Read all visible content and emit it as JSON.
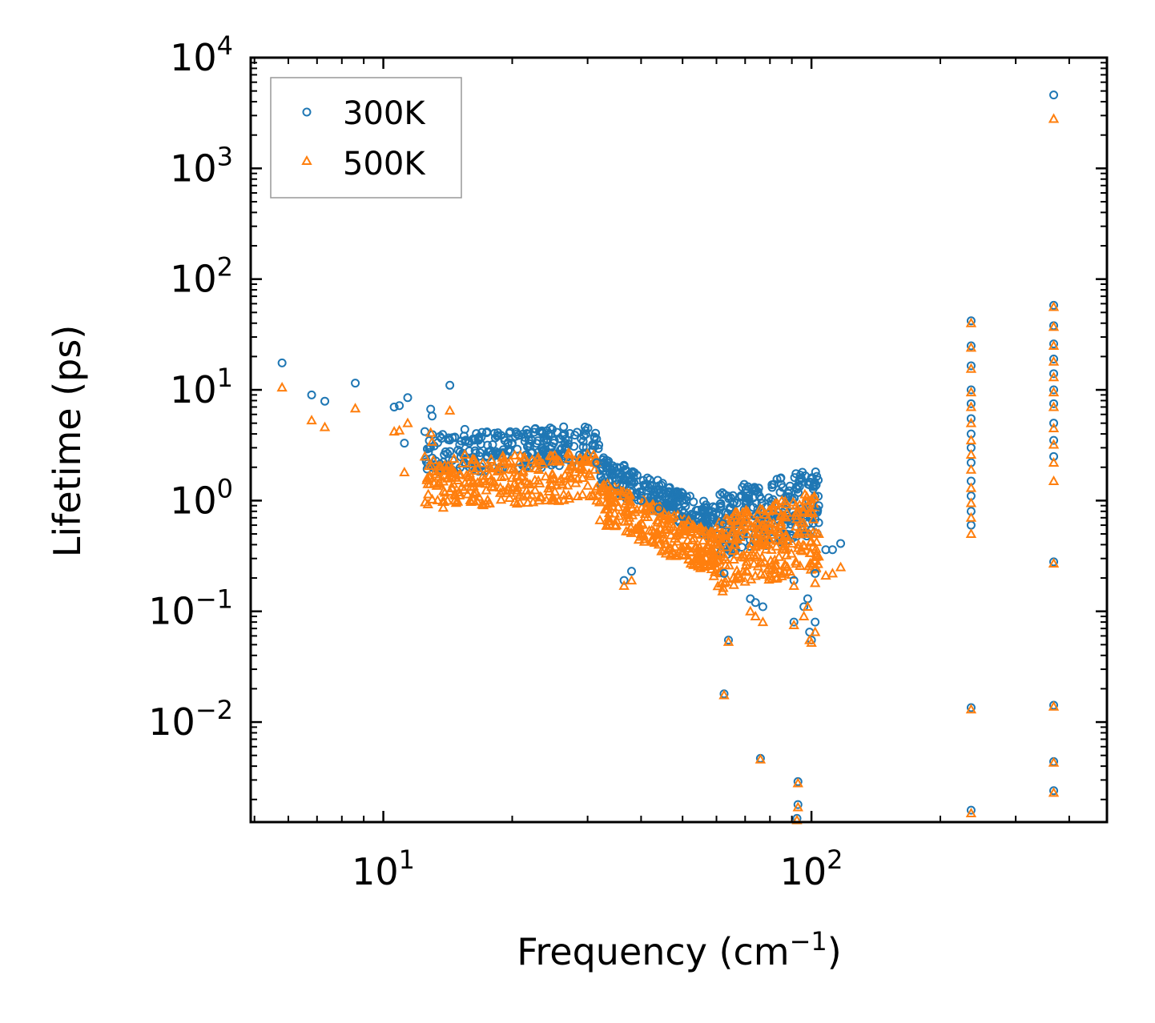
{
  "chart_data": {
    "type": "scatter",
    "title": "",
    "xlabel": "Frequency (cm",
    "xlabel_sup": "−1",
    "xlabel_suffix": ")",
    "ylabel": "Lifetime (ps)",
    "xscale": "log",
    "yscale": "log",
    "xlim": [
      4.9,
      490
    ],
    "ylim": [
      0.00125,
      10000
    ],
    "x_ticks": [
      {
        "value": 10,
        "base": "10",
        "exp": "1"
      },
      {
        "value": 100,
        "base": "10",
        "exp": "2"
      }
    ],
    "y_ticks": [
      {
        "value": 0.01,
        "base": "10",
        "exp": "−2"
      },
      {
        "value": 0.1,
        "base": "10",
        "exp": "−1"
      },
      {
        "value": 1,
        "base": "10",
        "exp": "0"
      },
      {
        "value": 10,
        "base": "10",
        "exp": "1"
      },
      {
        "value": 100,
        "base": "10",
        "exp": "2"
      },
      {
        "value": 1000,
        "base": "10",
        "exp": "3"
      },
      {
        "value": 10000,
        "base": "10",
        "exp": "4"
      }
    ],
    "legend_position": "top-left",
    "series": [
      {
        "name": "300K",
        "marker": "circle",
        "color": "#1f77b4",
        "points": [
          [
            5.8,
            17.5
          ],
          [
            6.8,
            9.0
          ],
          [
            7.3,
            7.9
          ],
          [
            8.6,
            11.5
          ],
          [
            10.6,
            7.0
          ],
          [
            10.9,
            7.2
          ],
          [
            11.2,
            3.3
          ],
          [
            11.4,
            8.5
          ],
          [
            12.5,
            4.2
          ],
          [
            12.9,
            6.7
          ],
          [
            13.0,
            5.8
          ],
          [
            14.3,
            11.0
          ],
          [
            14.5,
            3.7
          ],
          [
            15.5,
            4.4
          ],
          [
            16.2,
            3.6
          ],
          [
            18.0,
            3.2
          ],
          [
            20.0,
            3.3
          ],
          [
            22.0,
            3.1
          ],
          [
            25.0,
            3.3
          ],
          [
            28.0,
            3.9
          ],
          [
            29.0,
            3.6
          ],
          [
            31.5,
            2.2
          ],
          [
            35.0,
            1.4
          ],
          [
            40.0,
            1.0
          ],
          [
            44.0,
            0.85
          ],
          [
            50.0,
            0.72
          ],
          [
            57.0,
            0.7
          ],
          [
            62.0,
            0.62
          ],
          [
            67.0,
            0.95
          ],
          [
            75.0,
            1.2
          ],
          [
            85.0,
            1.4
          ],
          [
            92.0,
            1.75
          ],
          [
            100.0,
            1.6
          ],
          [
            104.0,
            0.9
          ],
          [
            108.0,
            0.36
          ],
          [
            112.0,
            0.36
          ],
          [
            117.0,
            0.41
          ],
          [
            36.5,
            0.19
          ],
          [
            38.0,
            0.23
          ],
          [
            62.5,
            0.22
          ],
          [
            64.0,
            0.055
          ],
          [
            62.5,
            0.018
          ],
          [
            72.0,
            0.13
          ],
          [
            74.0,
            0.12
          ],
          [
            77.0,
            0.11
          ],
          [
            76.0,
            0.0047
          ],
          [
            91.0,
            0.19
          ],
          [
            91.0,
            0.08
          ],
          [
            93.0,
            0.0029
          ],
          [
            93.0,
            0.0018
          ],
          [
            92.5,
            0.00135
          ],
          [
            96.0,
            0.11
          ],
          [
            98.0,
            0.13
          ],
          [
            99.0,
            0.065
          ],
          [
            100.0,
            0.055
          ],
          [
            102.0,
            0.22
          ],
          [
            102.0,
            0.08
          ],
          [
            236,
            42
          ],
          [
            236,
            25
          ],
          [
            236,
            16.5
          ],
          [
            236,
            10
          ],
          [
            236,
            7.5
          ],
          [
            236,
            5.5
          ],
          [
            236,
            4.0
          ],
          [
            236,
            3.0
          ],
          [
            236,
            2.2
          ],
          [
            236,
            1.5
          ],
          [
            236,
            1.1
          ],
          [
            236,
            0.8
          ],
          [
            236,
            0.6
          ],
          [
            236,
            0.0135
          ],
          [
            236,
            0.0016
          ],
          [
            368,
            4600
          ],
          [
            368,
            58
          ],
          [
            368,
            38
          ],
          [
            368,
            26
          ],
          [
            368,
            19
          ],
          [
            368,
            14
          ],
          [
            368,
            10
          ],
          [
            368,
            7.5
          ],
          [
            368,
            5.0
          ],
          [
            368,
            3.5
          ],
          [
            368,
            2.5
          ],
          [
            368,
            0.28
          ],
          [
            368,
            0.0142
          ],
          [
            368,
            0.0044
          ],
          [
            368,
            0.0024
          ]
        ]
      },
      {
        "name": "500K",
        "marker": "triangle",
        "color": "#ff7f0e",
        "points": [
          [
            5.8,
            10.5
          ],
          [
            6.8,
            5.3
          ],
          [
            7.3,
            4.6
          ],
          [
            8.6,
            6.8
          ],
          [
            10.6,
            4.2
          ],
          [
            10.9,
            4.3
          ],
          [
            11.2,
            1.8
          ],
          [
            11.4,
            5.0
          ],
          [
            12.5,
            2.5
          ],
          [
            12.9,
            4.1
          ],
          [
            13.0,
            3.4
          ],
          [
            14.3,
            6.5
          ],
          [
            14.5,
            1.3
          ],
          [
            15.5,
            2.6
          ],
          [
            16.2,
            1.5
          ],
          [
            18.0,
            1.5
          ],
          [
            20.0,
            1.6
          ],
          [
            22.0,
            1.4
          ],
          [
            25.0,
            1.6
          ],
          [
            28.0,
            2.3
          ],
          [
            29.0,
            2.0
          ],
          [
            31.5,
            1.0
          ],
          [
            35.0,
            0.6
          ],
          [
            40.0,
            0.5
          ],
          [
            44.0,
            0.4
          ],
          [
            50.0,
            0.35
          ],
          [
            57.0,
            0.35
          ],
          [
            62.0,
            0.33
          ],
          [
            67.0,
            0.45
          ],
          [
            75.0,
            0.5
          ],
          [
            85.0,
            0.6
          ],
          [
            92.0,
            0.9
          ],
          [
            100.0,
            0.8
          ],
          [
            104.0,
            0.5
          ],
          [
            108.0,
            0.21
          ],
          [
            112.0,
            0.22
          ],
          [
            117.0,
            0.25
          ],
          [
            36.5,
            0.17
          ],
          [
            38.0,
            0.19
          ],
          [
            62.5,
            0.18
          ],
          [
            64.0,
            0.053
          ],
          [
            62.5,
            0.0175
          ],
          [
            72.0,
            0.1
          ],
          [
            74.0,
            0.09
          ],
          [
            77.0,
            0.08
          ],
          [
            76.0,
            0.0046
          ],
          [
            91.0,
            0.17
          ],
          [
            91.0,
            0.075
          ],
          [
            93.0,
            0.0028
          ],
          [
            93.0,
            0.0017
          ],
          [
            92.5,
            0.0013
          ],
          [
            96.0,
            0.09
          ],
          [
            98.0,
            0.11
          ],
          [
            99.0,
            0.055
          ],
          [
            100.0,
            0.052
          ],
          [
            102.0,
            0.18
          ],
          [
            102.0,
            0.065
          ],
          [
            236,
            40
          ],
          [
            236,
            24
          ],
          [
            236,
            15.5
          ],
          [
            236,
            9.5
          ],
          [
            236,
            7.0
          ],
          [
            236,
            5.0
          ],
          [
            236,
            3.5
          ],
          [
            236,
            2.6
          ],
          [
            236,
            1.9
          ],
          [
            236,
            1.3
          ],
          [
            236,
            0.95
          ],
          [
            236,
            0.7
          ],
          [
            236,
            0.5
          ],
          [
            236,
            0.013
          ],
          [
            236,
            0.0015
          ],
          [
            368,
            2800
          ],
          [
            368,
            56
          ],
          [
            368,
            37
          ],
          [
            368,
            25
          ],
          [
            368,
            18
          ],
          [
            368,
            13
          ],
          [
            368,
            9.5
          ],
          [
            368,
            7.0
          ],
          [
            368,
            4.5
          ],
          [
            368,
            3.2
          ],
          [
            368,
            2.2
          ],
          [
            368,
            1.5
          ],
          [
            368,
            0.27
          ],
          [
            368,
            0.0138
          ],
          [
            368,
            0.0043
          ],
          [
            368,
            0.0023
          ]
        ]
      }
    ],
    "dense_bands": [
      {
        "series": "300K",
        "x_range": [
          12.5,
          32
        ],
        "y_at_start": 2.6,
        "y_at_end": 3.2,
        "spread": 0.18
      },
      {
        "series": "300K",
        "x_range": [
          32,
          60
        ],
        "y_at_start": 1.9,
        "y_at_end": 0.62,
        "spread": 0.15
      },
      {
        "series": "300K",
        "x_range": [
          60,
          104
        ],
        "y_at_start": 0.62,
        "y_at_end": 1.0,
        "spread": 0.3
      },
      {
        "series": "500K",
        "x_range": [
          12.5,
          32
        ],
        "y_at_start": 1.4,
        "y_at_end": 1.7,
        "spread": 0.22
      },
      {
        "series": "500K",
        "x_range": [
          32,
          60
        ],
        "y_at_start": 1.0,
        "y_at_end": 0.32,
        "spread": 0.2
      },
      {
        "series": "500K",
        "x_range": [
          60,
          104
        ],
        "y_at_start": 0.32,
        "y_at_end": 0.55,
        "spread": 0.35
      }
    ]
  }
}
